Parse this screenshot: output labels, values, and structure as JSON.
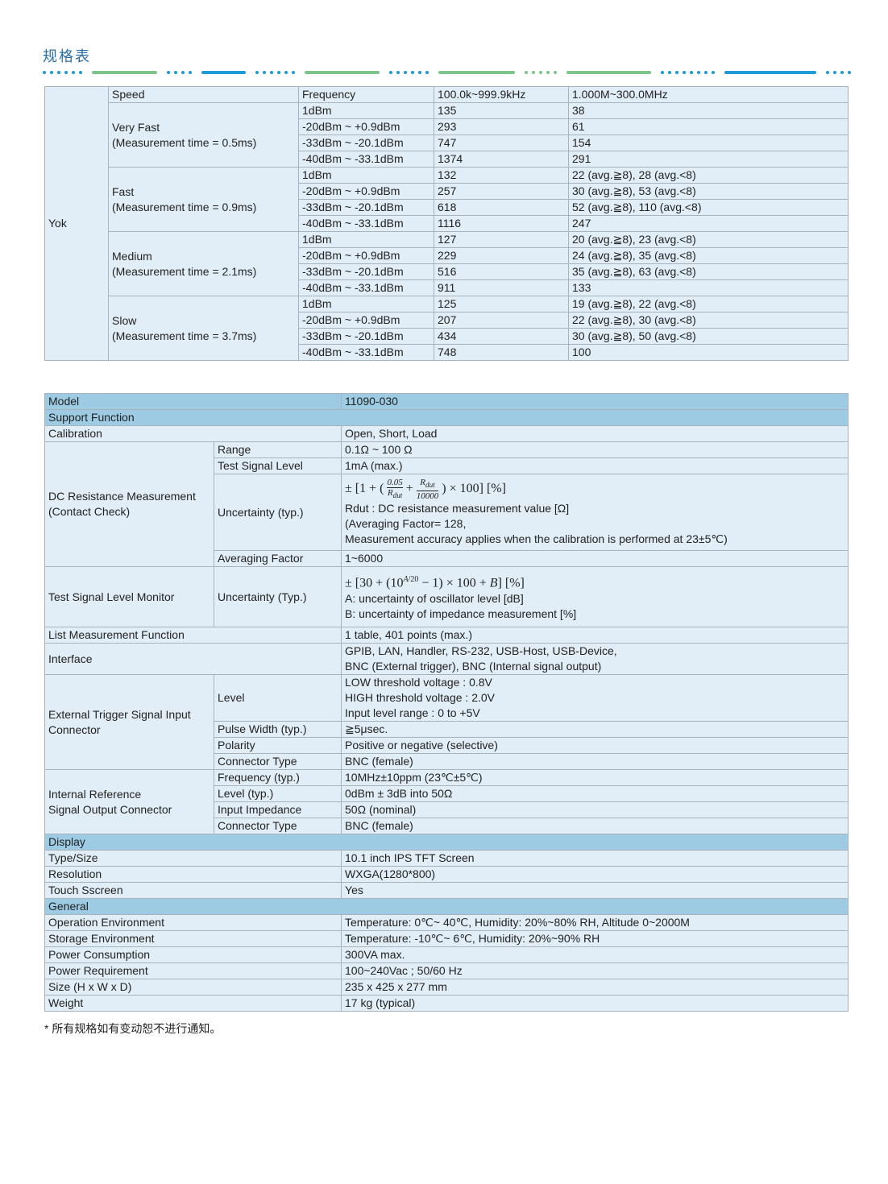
{
  "title": "规格表",
  "table1": {
    "row_label": "Yok",
    "header": [
      "Speed",
      "Frequency",
      "100.0k~999.9kHz",
      "1.000M~300.0MHz"
    ],
    "groups": [
      {
        "name": "Very Fast",
        "time": "(Measurement time = 0.5ms)",
        "rows": [
          [
            "1dBm",
            "135",
            "38"
          ],
          [
            "-20dBm ~ +0.9dBm",
            "293",
            "61"
          ],
          [
            "-33dBm ~ -20.1dBm",
            "747",
            "154"
          ],
          [
            "-40dBm ~ -33.1dBm",
            "1374",
            "291"
          ]
        ]
      },
      {
        "name": "Fast",
        "time": "(Measurement time = 0.9ms)",
        "rows": [
          [
            "1dBm",
            "132",
            "22 (avg.≧8),  28 (avg.<8)"
          ],
          [
            "-20dBm ~ +0.9dBm",
            "257",
            "30 (avg.≧8),  53 (avg.<8)"
          ],
          [
            "-33dBm ~ -20.1dBm",
            "618",
            "52 (avg.≧8), 110 (avg.<8)"
          ],
          [
            "-40dBm ~ -33.1dBm",
            "1116",
            "247"
          ]
        ]
      },
      {
        "name": "Medium",
        "time": "(Measurement time = 2.1ms)",
        "rows": [
          [
            "1dBm",
            "127",
            "20 (avg.≧8), 23 (avg.<8)"
          ],
          [
            "-20dBm ~ +0.9dBm",
            "229",
            "24 (avg.≧8), 35 (avg.<8)"
          ],
          [
            "-33dBm ~ -20.1dBm",
            "516",
            "35 (avg.≧8), 63 (avg.<8)"
          ],
          [
            "-40dBm ~ -33.1dBm",
            "911",
            "133"
          ]
        ]
      },
      {
        "name": "Slow",
        "time": "(Measurement time = 3.7ms)",
        "rows": [
          [
            "1dBm",
            "125",
            "19 (avg.≧8), 22 (avg.<8)"
          ],
          [
            "-20dBm ~ +0.9dBm",
            "207",
            "22 (avg.≧8), 30 (avg.<8)"
          ],
          [
            "-33dBm ~ -20.1dBm",
            "434",
            "30 (avg.≧8), 50 (avg.<8)"
          ],
          [
            "-40dBm ~ -33.1dBm",
            "748",
            "100"
          ]
        ]
      }
    ]
  },
  "table2": {
    "model": [
      "Model",
      "11090-030"
    ],
    "support": "Support Function",
    "calibration": [
      "Calibration",
      "Open, Short, Load"
    ],
    "dcr": {
      "name1": "DC Resistance Measurement",
      "name2": "(Contact Check)",
      "range": [
        "Range",
        "0.1Ω ~ 100 Ω"
      ],
      "tsl": [
        "Test Signal Level",
        "1mA (max.)"
      ],
      "unc_label": "Uncertainty (typ.)",
      "unc_lines": [
        "Rdut : DC resistance measurement value [Ω]",
        "(Averaging Factor= 128,",
        "Measurement accuracy applies when the calibration is performed at 23±5℃)"
      ],
      "avg": [
        "Averaging Factor",
        "1~6000"
      ]
    },
    "tslm": {
      "name": "Test Signal Level Monitor",
      "unc_label": "Uncertainty (Typ.)",
      "lines": [
        "A: uncertainty of oscillator level [dB]",
        "B: uncertainty of impedance measurement [%]"
      ]
    },
    "list": [
      "List Measurement Function",
      "1 table, 401 points (max.)"
    ],
    "interface": {
      "label": "Interface",
      "lines": [
        "GPIB, LAN, Handler, RS-232, USB-Host, USB-Device,",
        "BNC (External trigger), BNC (Internal signal output)"
      ]
    },
    "ext": {
      "name1": "External Trigger Signal Input",
      "name2": "Connector",
      "level_label": "Level",
      "level_lines": [
        "LOW threshold voltage : 0.8V",
        "HIGH threshold voltage : 2.0V",
        "Input level range : 0 to  +5V"
      ],
      "rows": [
        [
          "Pulse Width (typ.)",
          "≧5μsec."
        ],
        [
          "Polarity",
          "Positive or negative (selective)"
        ],
        [
          "Connector Type",
          "BNC (female)"
        ]
      ]
    },
    "ref": {
      "name1": "Internal Reference",
      "name2": "Signal Output Connector",
      "rows": [
        [
          "Frequency (typ.)",
          "10MHz±10ppm (23℃±5℃)"
        ],
        [
          "Level (typ.)",
          "0dBm ± 3dB into 50Ω"
        ],
        [
          "Input Impedance",
          "50Ω (nominal)"
        ],
        [
          "Connector Type",
          "BNC (female)"
        ]
      ]
    },
    "display": "Display",
    "display_rows": [
      [
        "Type/Size",
        "10.1 inch IPS TFT Screen"
      ],
      [
        "Resolution",
        "WXGA(1280*800)"
      ],
      [
        "Touch Sscreen",
        "Yes"
      ]
    ],
    "general": "General",
    "general_rows": [
      [
        "Operation Environment",
        "Temperature: 0℃~ 40℃, Humidity: 20%~80% RH, Altitude 0~2000M"
      ],
      [
        "Storage Environment",
        "Temperature: -10℃~ 6℃, Humidity: 20%~90% RH"
      ],
      [
        "Power Consumption",
        "300VA max."
      ],
      [
        "Power Requirement",
        "100~240Vac ; 50/60 Hz"
      ],
      [
        "Size (H x W x D)",
        "235 x 425 x 277 mm"
      ],
      [
        "Weight",
        "17 kg (typical)"
      ]
    ]
  },
  "note": "* 所有规格如有变动恕不进行通知。"
}
